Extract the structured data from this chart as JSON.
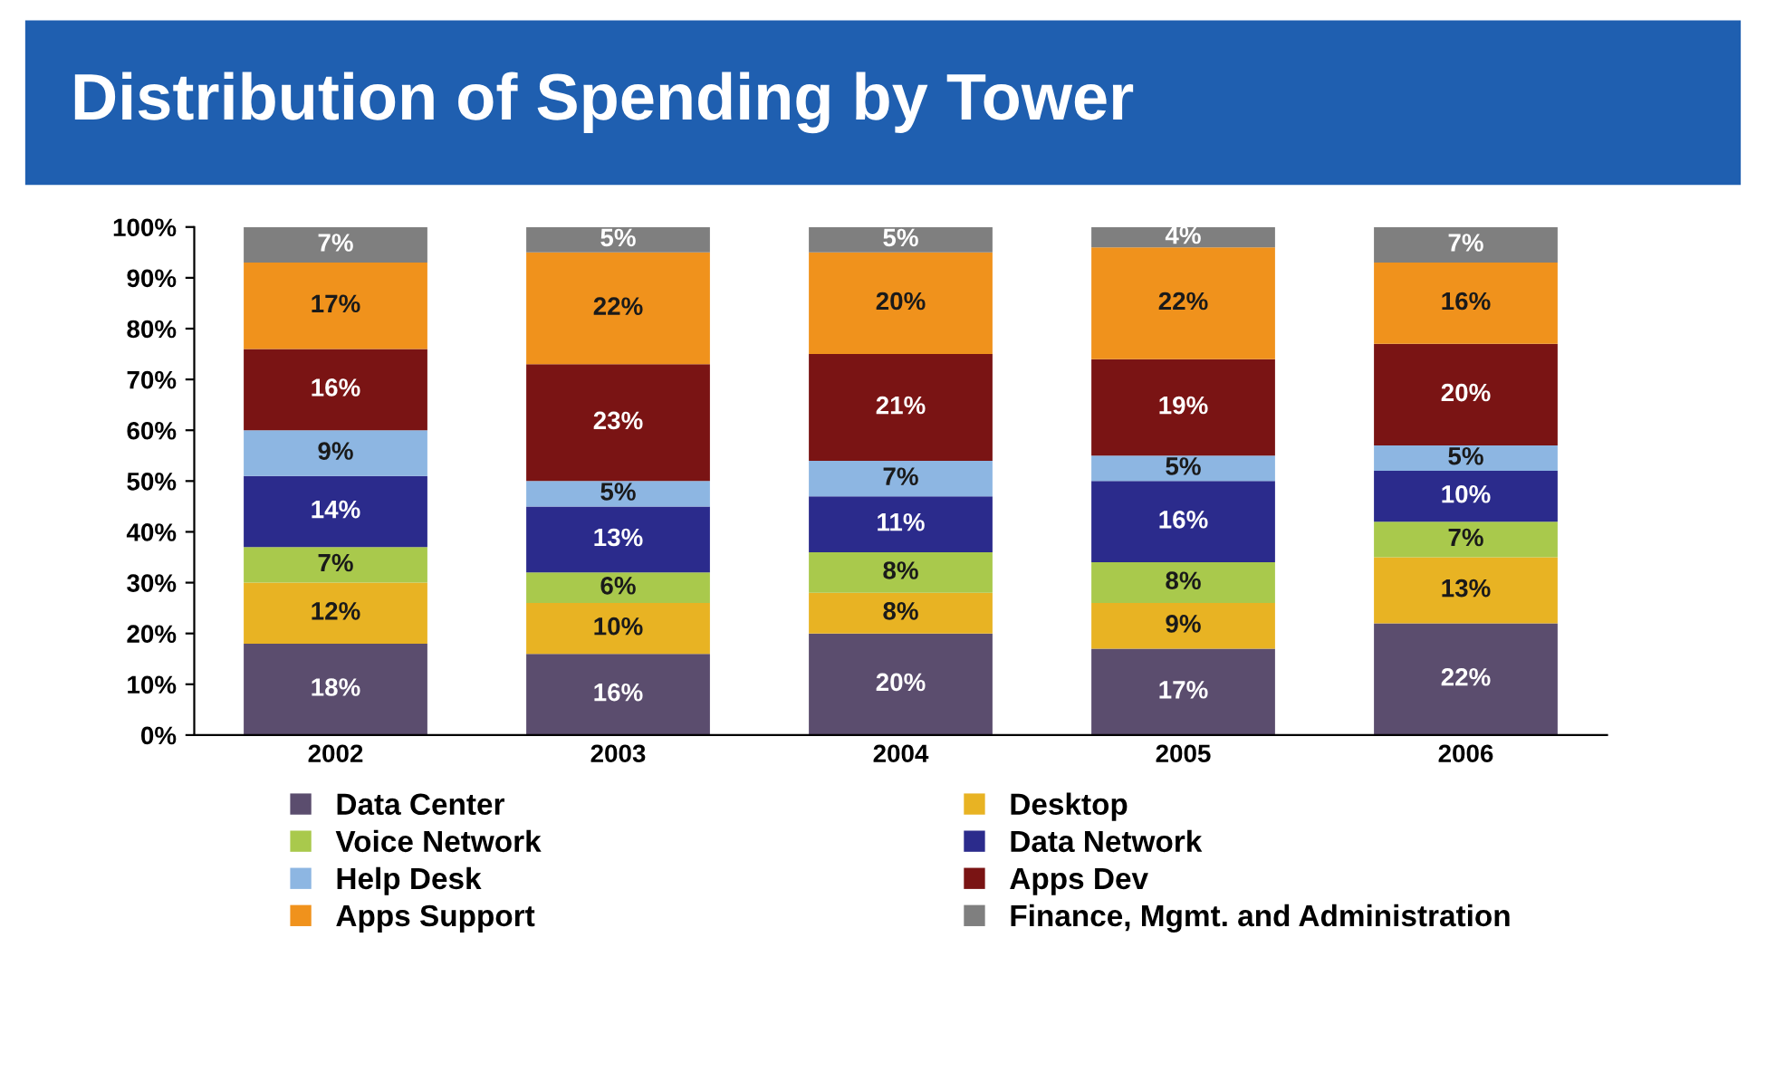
{
  "chart_data": {
    "type": "bar",
    "title": "Distribution of Spending by Tower",
    "stacked": true,
    "categories": [
      "2002",
      "2003",
      "2004",
      "2005",
      "2006"
    ],
    "ylim": [
      0,
      100
    ],
    "yticks": [
      {
        "value": 0,
        "label": "0%"
      },
      {
        "value": 10,
        "label": "10%"
      },
      {
        "value": 20,
        "label": "20%"
      },
      {
        "value": 30,
        "label": "30%"
      },
      {
        "value": 40,
        "label": "40%"
      },
      {
        "value": 50,
        "label": "50%"
      },
      {
        "value": 60,
        "label": "60%"
      },
      {
        "value": 70,
        "label": "70%"
      },
      {
        "value": 80,
        "label": "80%"
      },
      {
        "value": 90,
        "label": "90%"
      },
      {
        "value": 100,
        "label": "100%"
      }
    ],
    "grid": false,
    "legend": "bottom",
    "series": [
      {
        "name": "Data Center",
        "color": "#5b4d6e",
        "values": [
          18,
          16,
          20,
          17,
          22
        ],
        "value_labels": [
          "18%",
          "16%",
          "20%",
          "17%",
          "22%"
        ]
      },
      {
        "name": "Desktop",
        "color": "#e8b323",
        "values": [
          12,
          10,
          8,
          9,
          13
        ],
        "value_labels": [
          "12%",
          "10%",
          "8%",
          "9%",
          "13%"
        ]
      },
      {
        "name": "Voice Network",
        "color": "#a9c94c",
        "values": [
          7,
          6,
          8,
          8,
          7
        ],
        "value_labels": [
          "7%",
          "6%",
          "8%",
          "8%",
          "7%"
        ]
      },
      {
        "name": "Data Network",
        "color": "#2b2b8c",
        "values": [
          14,
          13,
          11,
          16,
          10
        ],
        "value_labels": [
          "14%",
          "13%",
          "11%",
          "16%",
          "10%"
        ]
      },
      {
        "name": "Help Desk",
        "color": "#8db6e2",
        "values": [
          9,
          5,
          7,
          5,
          5
        ],
        "value_labels": [
          "9%",
          "5%",
          "7%",
          "5%",
          "5%"
        ]
      },
      {
        "name": "Apps Dev",
        "color": "#7a1414",
        "values": [
          16,
          23,
          21,
          19,
          20
        ],
        "value_labels": [
          "16%",
          "23%",
          "21%",
          "19%",
          "20%"
        ]
      },
      {
        "name": "Apps Support",
        "color": "#f0921c",
        "values": [
          17,
          22,
          20,
          22,
          16
        ],
        "value_labels": [
          "17%",
          "22%",
          "20%",
          "22%",
          "16%"
        ]
      },
      {
        "name": "Finance, Mgmt. and Administration",
        "color": "#7f7f7f",
        "values": [
          7,
          5,
          5,
          4,
          7
        ],
        "value_labels": [
          "7%",
          "5%",
          "5%",
          "4%",
          "7%"
        ]
      }
    ]
  }
}
